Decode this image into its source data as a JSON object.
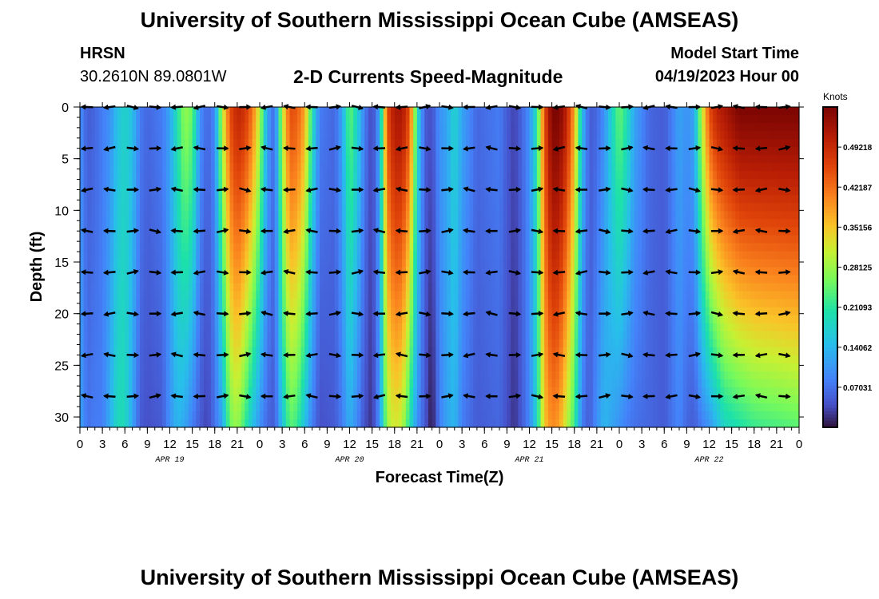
{
  "header": {
    "title": "University of Southern Mississippi Ocean Cube (AMSEAS)",
    "station": "HRSN",
    "coords": "30.2610N  89.0801W",
    "plot_title": "2-D Currents Speed-Magnitude",
    "start_label": "Model Start Time",
    "start_date": "04/19/2023 Hour 00"
  },
  "footer": {
    "title": "University of Southern Mississippi Ocean Cube (AMSEAS)"
  },
  "chart_data": {
    "type": "heatmap",
    "title": "2-D Currents Speed-Magnitude",
    "xlabel": "Forecast Time(Z)",
    "ylabel": "Depth (ft)",
    "x_hours_range": [
      0,
      96
    ],
    "ylim": [
      0,
      31
    ],
    "x_tick_labels": [
      "0",
      "3",
      "6",
      "9",
      "12",
      "15",
      "18",
      "21",
      "0",
      "3",
      "6",
      "9",
      "12",
      "15",
      "18",
      "21",
      "0",
      "3",
      "6",
      "9",
      "12",
      "15",
      "18",
      "21",
      "0",
      "3",
      "6",
      "9",
      "12",
      "15",
      "18",
      "21",
      "0"
    ],
    "y_ticks": [
      0,
      5,
      10,
      15,
      20,
      25,
      30
    ],
    "day_labels": [
      {
        "label": "APR 19",
        "hour": 12
      },
      {
        "label": "APR 20",
        "hour": 36
      },
      {
        "label": "APR 21",
        "hour": 60
      },
      {
        "label": "APR 22",
        "hour": 84
      }
    ],
    "colorbar": {
      "unit": "Knots",
      "range": [
        0,
        0.5625
      ],
      "tick_labels": [
        "0.49218",
        "0.42187",
        "0.35156",
        "0.28125",
        "0.21093",
        "0.14062",
        "0.07031"
      ],
      "tick_values": [
        0.49218,
        0.42187,
        0.35156,
        0.28125,
        0.21093,
        0.14062,
        0.07031
      ]
    },
    "arrow_depths_ft": [
      0,
      4,
      8,
      12,
      16,
      20,
      24,
      28
    ],
    "speed_profile": [
      {
        "hour": 0,
        "surface": 0.1,
        "bottom": 0.12
      },
      {
        "hour": 1,
        "surface": 0.05,
        "bottom": 0.07
      },
      {
        "hour": 2,
        "surface": 0.06,
        "bottom": 0.08
      },
      {
        "hour": 3,
        "surface": 0.08,
        "bottom": 0.08
      },
      {
        "hour": 4,
        "surface": 0.1,
        "bottom": 0.13
      },
      {
        "hour": 5,
        "surface": 0.15,
        "bottom": 0.19
      },
      {
        "hour": 6,
        "surface": 0.18,
        "bottom": 0.19
      },
      {
        "hour": 7,
        "surface": 0.15,
        "bottom": 0.12
      },
      {
        "hour": 8,
        "surface": 0.08,
        "bottom": 0.05
      },
      {
        "hour": 9,
        "surface": 0.06,
        "bottom": 0.04
      },
      {
        "hour": 11,
        "surface": 0.08,
        "bottom": 0.05
      },
      {
        "hour": 12,
        "surface": 0.12,
        "bottom": 0.1
      },
      {
        "hour": 13,
        "surface": 0.2,
        "bottom": 0.14
      },
      {
        "hour": 14,
        "surface": 0.28,
        "bottom": 0.12
      },
      {
        "hour": 15,
        "surface": 0.25,
        "bottom": 0.08
      },
      {
        "hour": 16,
        "surface": 0.1,
        "bottom": 0.05
      },
      {
        "hour": 17,
        "surface": 0.06,
        "bottom": 0.03
      },
      {
        "hour": 18,
        "surface": 0.09,
        "bottom": 0.07
      },
      {
        "hour": 19,
        "surface": 0.3,
        "bottom": 0.12
      },
      {
        "hour": 20,
        "surface": 0.45,
        "bottom": 0.25
      },
      {
        "hour": 21,
        "surface": 0.5,
        "bottom": 0.28
      },
      {
        "hour": 22,
        "surface": 0.48,
        "bottom": 0.22
      },
      {
        "hour": 23,
        "surface": 0.42,
        "bottom": 0.15
      },
      {
        "hour": 24,
        "surface": 0.3,
        "bottom": 0.1
      },
      {
        "hour": 25,
        "surface": 0.12,
        "bottom": 0.06
      },
      {
        "hour": 26,
        "surface": 0.06,
        "bottom": 0.05
      },
      {
        "hour": 27,
        "surface": 0.3,
        "bottom": 0.15
      },
      {
        "hour": 28,
        "surface": 0.45,
        "bottom": 0.24
      },
      {
        "hour": 29,
        "surface": 0.44,
        "bottom": 0.22
      },
      {
        "hour": 30,
        "surface": 0.38,
        "bottom": 0.15
      },
      {
        "hour": 31,
        "surface": 0.2,
        "bottom": 0.08
      },
      {
        "hour": 32,
        "surface": 0.08,
        "bottom": 0.04
      },
      {
        "hour": 34,
        "surface": 0.06,
        "bottom": 0.05
      },
      {
        "hour": 35,
        "surface": 0.12,
        "bottom": 0.08
      },
      {
        "hour": 36,
        "surface": 0.25,
        "bottom": 0.13
      },
      {
        "hour": 37,
        "surface": 0.18,
        "bottom": 0.09
      },
      {
        "hour": 38,
        "surface": 0.08,
        "bottom": 0.04
      },
      {
        "hour": 39,
        "surface": 0.03,
        "bottom": 0.02
      },
      {
        "hour": 40,
        "surface": 0.12,
        "bottom": 0.1
      },
      {
        "hour": 41,
        "surface": 0.45,
        "bottom": 0.28
      },
      {
        "hour": 42,
        "surface": 0.52,
        "bottom": 0.32
      },
      {
        "hour": 43,
        "surface": 0.52,
        "bottom": 0.3
      },
      {
        "hour": 44,
        "surface": 0.45,
        "bottom": 0.2
      },
      {
        "hour": 45,
        "surface": 0.2,
        "bottom": 0.1
      },
      {
        "hour": 46,
        "surface": 0.05,
        "bottom": 0.05
      },
      {
        "hour": 47,
        "surface": 0.04,
        "bottom": 0.0
      },
      {
        "hour": 48,
        "surface": 0.1,
        "bottom": 0.08
      },
      {
        "hour": 49,
        "surface": 0.12,
        "bottom": 0.12
      },
      {
        "hour": 50,
        "surface": 0.18,
        "bottom": 0.14
      },
      {
        "hour": 51,
        "surface": 0.12,
        "bottom": 0.08
      },
      {
        "hour": 53,
        "surface": 0.06,
        "bottom": 0.05
      },
      {
        "hour": 56,
        "surface": 0.08,
        "bottom": 0.06
      },
      {
        "hour": 57,
        "surface": 0.05,
        "bottom": 0.04
      },
      {
        "hour": 58,
        "surface": 0.03,
        "bottom": 0.02
      },
      {
        "hour": 59,
        "surface": 0.06,
        "bottom": 0.05
      },
      {
        "hour": 60,
        "surface": 0.1,
        "bottom": 0.09
      },
      {
        "hour": 61,
        "surface": 0.2,
        "bottom": 0.18
      },
      {
        "hour": 62,
        "surface": 0.45,
        "bottom": 0.35
      },
      {
        "hour": 63,
        "surface": 0.56,
        "bottom": 0.4
      },
      {
        "hour": 64,
        "surface": 0.56,
        "bottom": 0.38
      },
      {
        "hour": 65,
        "surface": 0.5,
        "bottom": 0.3
      },
      {
        "hour": 66,
        "surface": 0.38,
        "bottom": 0.22
      },
      {
        "hour": 67,
        "surface": 0.15,
        "bottom": 0.08
      },
      {
        "hour": 68,
        "surface": 0.05,
        "bottom": 0.05
      },
      {
        "hour": 69,
        "surface": 0.06,
        "bottom": 0.1
      },
      {
        "hour": 70,
        "surface": 0.1,
        "bottom": 0.14
      },
      {
        "hour": 71,
        "surface": 0.18,
        "bottom": 0.12
      },
      {
        "hour": 72,
        "surface": 0.25,
        "bottom": 0.1
      },
      {
        "hour": 73,
        "surface": 0.2,
        "bottom": 0.08
      },
      {
        "hour": 74,
        "surface": 0.12,
        "bottom": 0.07
      },
      {
        "hour": 76,
        "surface": 0.06,
        "bottom": 0.06
      },
      {
        "hour": 78,
        "surface": 0.05,
        "bottom": 0.05
      },
      {
        "hour": 79,
        "surface": 0.08,
        "bottom": 0.07
      },
      {
        "hour": 80,
        "surface": 0.12,
        "bottom": 0.09
      },
      {
        "hour": 81,
        "surface": 0.1,
        "bottom": 0.06
      },
      {
        "hour": 82,
        "surface": 0.12,
        "bottom": 0.05
      },
      {
        "hour": 83,
        "surface": 0.3,
        "bottom": 0.08
      },
      {
        "hour": 84,
        "surface": 0.45,
        "bottom": 0.1
      },
      {
        "hour": 85,
        "surface": 0.5,
        "bottom": 0.14
      },
      {
        "hour": 86,
        "surface": 0.52,
        "bottom": 0.18
      },
      {
        "hour": 88,
        "surface": 0.56,
        "bottom": 0.2
      },
      {
        "hour": 90,
        "surface": 0.56,
        "bottom": 0.22
      },
      {
        "hour": 96,
        "surface": 0.56,
        "bottom": 0.24
      }
    ]
  }
}
